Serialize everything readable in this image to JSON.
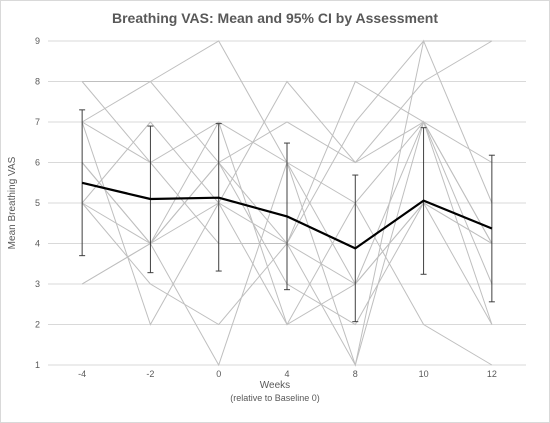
{
  "chart_data": {
    "type": "line",
    "title": "Breathing VAS: Mean and 95% CI by Assessment",
    "xlabel": "Weeks",
    "xlabel_sub": "(relative to Baseline 0)",
    "ylabel": "Mean Breathing VAS",
    "x": [
      -4,
      -2,
      0,
      4,
      8,
      10,
      12
    ],
    "x_tick_labels": [
      "-4",
      "-2",
      "0",
      "4",
      "8",
      "10",
      "12"
    ],
    "y_tick_labels": [
      "1",
      "2",
      "3",
      "4",
      "5",
      "6",
      "7",
      "8",
      "9"
    ],
    "ylim": [
      1,
      9
    ],
    "grid": "horizontal",
    "mean": {
      "values": [
        5.5,
        5.1,
        5.13,
        4.67,
        3.88,
        5.06,
        4.37
      ],
      "ci_lower": [
        3.7,
        3.28,
        3.32,
        2.86,
        2.07,
        3.24,
        2.56
      ],
      "ci_upper": [
        7.3,
        6.9,
        6.96,
        6.48,
        5.69,
        6.86,
        6.18
      ],
      "color": "#000000"
    },
    "individual_series_color": "#bfbfbf",
    "individual_series": [
      [
        3,
        4,
        5,
        8,
        6,
        7,
        6
      ],
      [
        5,
        4,
        6,
        4,
        3,
        5,
        4
      ],
      [
        7,
        6,
        4,
        4,
        7,
        9,
        9
      ],
      [
        8,
        6,
        7,
        2,
        3,
        7,
        3
      ],
      [
        6,
        4,
        7,
        6,
        5,
        7,
        4
      ],
      [
        7,
        8,
        9,
        6,
        1,
        7,
        2
      ],
      [
        5,
        3,
        2,
        4,
        8,
        7,
        4
      ],
      [
        3,
        4,
        6,
        7,
        6,
        8,
        9
      ],
      [
        7,
        2,
        5,
        4,
        1,
        9,
        5
      ],
      [
        8,
        8,
        6,
        3,
        2,
        5,
        4
      ],
      [
        5,
        7,
        5,
        2,
        5,
        2,
        1
      ],
      [
        6,
        4,
        1,
        6,
        3,
        5,
        2
      ]
    ]
  }
}
